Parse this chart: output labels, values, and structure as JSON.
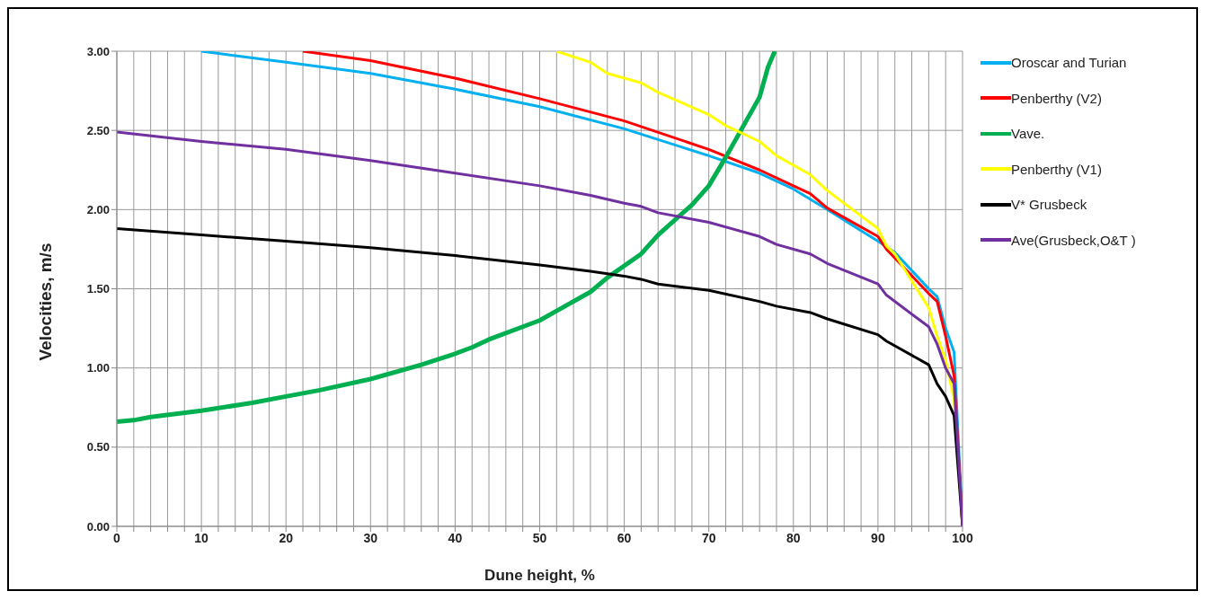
{
  "chart_data": {
    "type": "line",
    "xlabel": "Dune height, %",
    "ylabel": "Velocities, m/s",
    "xlim": [
      0,
      100
    ],
    "ylim": [
      0,
      3
    ],
    "xticks": [
      0,
      {
        "value": 2,
        "label": null
      },
      {
        "value": 4,
        "label": null
      },
      {
        "value": 6,
        "label": null
      },
      {
        "value": 8,
        "label": null
      },
      10,
      {
        "value": 12,
        "label": null
      },
      {
        "value": 14,
        "label": null
      },
      {
        "value": 16,
        "label": null
      },
      {
        "value": 18,
        "label": null
      },
      20,
      {
        "value": 22,
        "label": null
      },
      {
        "value": 24,
        "label": null
      },
      {
        "value": 26,
        "label": null
      },
      {
        "value": 28,
        "label": null
      },
      30,
      {
        "value": 32,
        "label": null
      },
      {
        "value": 34,
        "label": null
      },
      {
        "value": 36,
        "label": null
      },
      {
        "value": 38,
        "label": null
      },
      40,
      {
        "value": 42,
        "label": null
      },
      {
        "value": 44,
        "label": null
      },
      {
        "value": 46,
        "label": null
      },
      {
        "value": 48,
        "label": null
      },
      50,
      {
        "value": 52,
        "label": null
      },
      {
        "value": 54,
        "label": null
      },
      {
        "value": 56,
        "label": null
      },
      {
        "value": 58,
        "label": null
      },
      60,
      {
        "value": 62,
        "label": null
      },
      {
        "value": 64,
        "label": null
      },
      {
        "value": 66,
        "label": null
      },
      {
        "value": 68,
        "label": null
      },
      70,
      {
        "value": 72,
        "label": null
      },
      {
        "value": 74,
        "label": null
      },
      {
        "value": 76,
        "label": null
      },
      {
        "value": 78,
        "label": null
      },
      80,
      {
        "value": 82,
        "label": null
      },
      {
        "value": 84,
        "label": null
      },
      {
        "value": 86,
        "label": null
      },
      {
        "value": 88,
        "label": null
      },
      90,
      {
        "value": 92,
        "label": null
      },
      {
        "value": 94,
        "label": null
      },
      {
        "value": 96,
        "label": null
      },
      {
        "value": 98,
        "label": null
      },
      100
    ],
    "yticks": [
      {
        "value": 0,
        "label": "0.00"
      },
      {
        "value": 0.5,
        "label": "0.50"
      },
      {
        "value": 1,
        "label": "1.00"
      },
      {
        "value": 1.5,
        "label": "1.50"
      },
      {
        "value": 2,
        "label": "2.00"
      },
      {
        "value": 2.5,
        "label": "2.50"
      },
      {
        "value": 3,
        "label": "3.00"
      }
    ],
    "grid": true,
    "legend": "right",
    "marker": "none",
    "line_style": "solid",
    "series": [
      {
        "name": "Oroscar and Turian",
        "color": "#00b0f0",
        "x": [
          10,
          20,
          30,
          40,
          50,
          60,
          70,
          76,
          80,
          84,
          90,
          92,
          96,
          97,
          98,
          99,
          100
        ],
        "values": [
          3.0,
          2.93,
          2.86,
          2.76,
          2.65,
          2.51,
          2.34,
          2.23,
          2.13,
          2.0,
          1.8,
          1.73,
          1.5,
          1.45,
          1.25,
          1.1,
          0
        ]
      },
      {
        "name": "Penberthy (V2)",
        "color": "#ff0000",
        "x": [
          22,
          30,
          40,
          50,
          60,
          70,
          76,
          80,
          82,
          84,
          90,
          91,
          96,
          97,
          98,
          99,
          100
        ],
        "values": [
          3.0,
          2.94,
          2.83,
          2.7,
          2.56,
          2.38,
          2.25,
          2.15,
          2.1,
          2.01,
          1.83,
          1.75,
          1.47,
          1.42,
          1.2,
          0.95,
          0
        ]
      },
      {
        "name": "Vave.",
        "color": "#00b050",
        "x": [
          0,
          2,
          4,
          10,
          16,
          20,
          24,
          30,
          36,
          40,
          42,
          44,
          50,
          52,
          56,
          58,
          62,
          64,
          68,
          70,
          72,
          76,
          77,
          77.8
        ],
        "values": [
          0.66,
          0.67,
          0.69,
          0.73,
          0.78,
          0.82,
          0.86,
          0.93,
          1.02,
          1.09,
          1.13,
          1.18,
          1.3,
          1.36,
          1.48,
          1.57,
          1.72,
          1.84,
          2.03,
          2.15,
          2.33,
          2.71,
          2.9,
          3.0
        ]
      },
      {
        "name": "Penberthy (V1)",
        "color": "#ffff00",
        "x": [
          52,
          56,
          58,
          62,
          64,
          70,
          72,
          76,
          78,
          82,
          84,
          90,
          91,
          92,
          96,
          97,
          98,
          99,
          100
        ],
        "values": [
          3.0,
          2.93,
          2.86,
          2.8,
          2.74,
          2.6,
          2.53,
          2.43,
          2.34,
          2.22,
          2.12,
          1.88,
          1.77,
          1.72,
          1.38,
          1.2,
          1.05,
          0.8,
          0
        ]
      },
      {
        "name": "V* Grusbeck",
        "color": "#000000",
        "x": [
          0,
          10,
          20,
          30,
          40,
          50,
          56,
          60,
          62,
          64,
          70,
          76,
          78,
          82,
          84,
          90,
          91,
          96,
          97,
          98,
          99,
          100
        ],
        "values": [
          1.88,
          1.84,
          1.8,
          1.76,
          1.71,
          1.65,
          1.61,
          1.58,
          1.56,
          1.53,
          1.49,
          1.42,
          1.39,
          1.35,
          1.31,
          1.21,
          1.17,
          1.02,
          0.9,
          0.82,
          0.7,
          0
        ]
      },
      {
        "name": "Ave(Grusbeck,O&T )",
        "color": "#7030a0",
        "x": [
          0,
          10,
          20,
          30,
          40,
          50,
          56,
          60,
          62,
          64,
          70,
          76,
          78,
          82,
          84,
          90,
          91,
          96,
          97,
          98,
          99,
          100
        ],
        "values": [
          2.49,
          2.43,
          2.38,
          2.31,
          2.23,
          2.15,
          2.09,
          2.04,
          2.02,
          1.98,
          1.92,
          1.83,
          1.78,
          1.72,
          1.66,
          1.53,
          1.46,
          1.26,
          1.15,
          1.0,
          0.9,
          0
        ]
      }
    ]
  }
}
